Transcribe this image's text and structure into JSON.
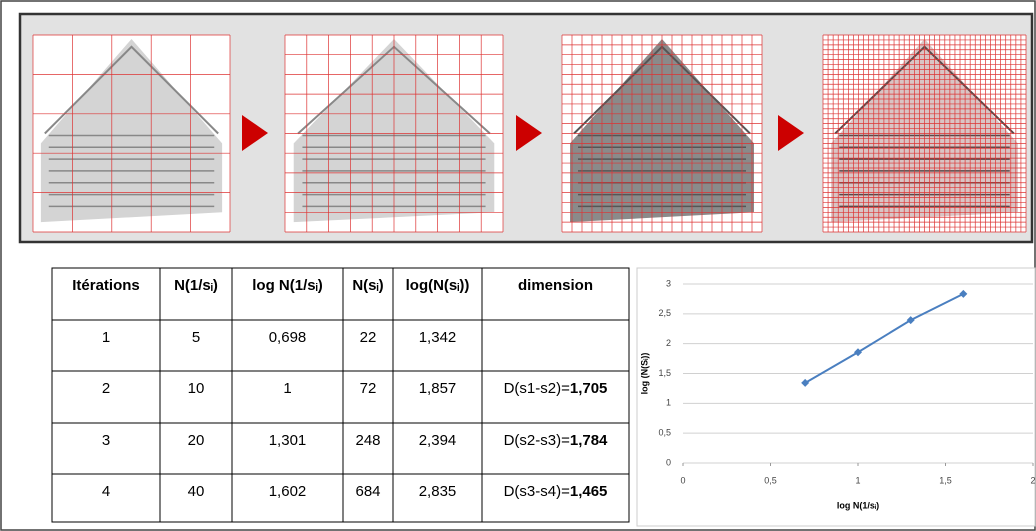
{
  "table": {
    "header": [
      "Itérations",
      "N(1/sᵢ)",
      "log N(1/sᵢ)",
      "N(sᵢ)",
      "log(N(sᵢ))",
      "dimension"
    ],
    "rows": [
      [
        "1",
        "5",
        "0,698",
        "22",
        "1,342",
        null
      ],
      [
        "2",
        "10",
        "1",
        "72",
        "1,857",
        {
          "label": "D(s1-s2)=",
          "value": "1,705"
        }
      ],
      [
        "3",
        "20",
        "1,301",
        "248",
        "2,394",
        {
          "label": "D(s2-s3)=",
          "value": "1,784"
        }
      ],
      [
        "4",
        "40",
        "1,602",
        "684",
        "2,835",
        {
          "label": "D(s3-s4)=",
          "value": "1,465"
        }
      ]
    ]
  },
  "chart_data": {
    "type": "line",
    "x": [
      0.698,
      1,
      1.301,
      1.602
    ],
    "series": [
      {
        "color": "#4a7fc0",
        "values": [
          1.342,
          1.857,
          2.394,
          2.835
        ]
      }
    ],
    "x_label": "log N(1/sᵢ)",
    "y_label": "log (N(Sᵢ))",
    "xlim": [
      0,
      2
    ],
    "ylim": [
      0,
      3
    ],
    "xticks": [
      0,
      {
        "value": 0.5,
        "label": "0,5"
      },
      1,
      {
        "value": 1.5,
        "label": "1,5"
      },
      2
    ],
    "yticks": [
      0,
      {
        "value": 0.5,
        "label": "0,5"
      },
      1,
      {
        "value": 1.5,
        "label": "1,5"
      },
      2,
      {
        "value": 2.5,
        "label": "2,5"
      },
      3
    ],
    "grid": true
  }
}
